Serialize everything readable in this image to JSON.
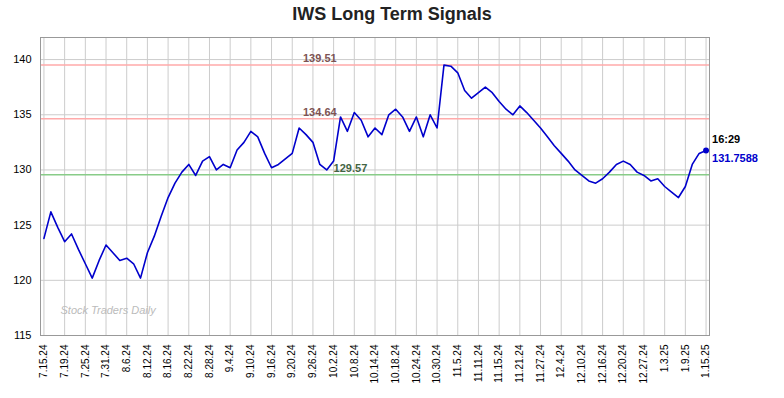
{
  "chart_data": {
    "type": "line",
    "title": "IWS Long Term Signals",
    "categories": [
      "7.15.24",
      null,
      null,
      "7.19.24",
      null,
      null,
      "7.25.24",
      null,
      null,
      "7.31.24",
      null,
      null,
      "8.6.24",
      null,
      null,
      "8.12.24",
      null,
      null,
      "8.16.24",
      null,
      null,
      "8.22.24",
      null,
      null,
      "8.28.24",
      null,
      null,
      "9.4.24",
      null,
      null,
      "9.10.24",
      null,
      null,
      "9.16.24",
      null,
      null,
      "9.20.24",
      null,
      null,
      "9.26.24",
      null,
      null,
      "10.2.24",
      null,
      null,
      "10.8.24",
      null,
      null,
      "10.14.24",
      null,
      null,
      "10.18.24",
      null,
      null,
      "10.24.24",
      null,
      null,
      "10.30.24",
      null,
      null,
      "11.5.24",
      null,
      null,
      "11.11.24",
      null,
      null,
      "11.15.24",
      null,
      null,
      "11.21.24",
      null,
      null,
      "11.27.24",
      null,
      null,
      "12.4.24",
      null,
      null,
      "12.10.24",
      null,
      null,
      "12.16.24",
      null,
      null,
      "12.20.24",
      null,
      null,
      "12.27.24",
      null,
      null,
      "1.3.25",
      null,
      null,
      "1.9.25",
      null,
      null,
      "1.15.25"
    ],
    "values": [
      123.8,
      126.2,
      124.8,
      123.5,
      124.2,
      122.8,
      121.5,
      120.2,
      121.8,
      123.2,
      122.5,
      121.8,
      122.0,
      121.5,
      120.2,
      122.5,
      124.0,
      125.8,
      127.5,
      128.8,
      129.8,
      130.5,
      129.5,
      130.8,
      131.2,
      130.0,
      130.5,
      130.2,
      131.8,
      132.5,
      133.5,
      133.0,
      131.5,
      130.2,
      130.5,
      131.0,
      131.5,
      133.8,
      133.2,
      132.5,
      130.5,
      130.0,
      130.8,
      134.8,
      133.5,
      135.2,
      134.5,
      133.0,
      133.8,
      133.2,
      135.0,
      135.5,
      134.8,
      133.5,
      134.8,
      133.0,
      135.0,
      133.8,
      139.5,
      139.4,
      138.8,
      137.2,
      136.5,
      137.0,
      137.5,
      137.0,
      136.2,
      135.5,
      135.0,
      135.8,
      135.2,
      134.5,
      133.8,
      133.0,
      132.2,
      131.5,
      130.8,
      130.0,
      129.5,
      129.0,
      128.8,
      129.2,
      129.8,
      130.5,
      130.8,
      130.5,
      129.8,
      129.5,
      129.0,
      129.2,
      128.5,
      128.0,
      127.5,
      128.5,
      130.5,
      131.5,
      131.76
    ],
    "color": "#0000cc",
    "ylim": [
      115,
      142
    ],
    "yticks": [
      115,
      120,
      125,
      130,
      135,
      140
    ],
    "grid": true,
    "hlines": [
      {
        "value": 139.51,
        "label": "139.51",
        "color": "#ffaaaa"
      },
      {
        "value": 134.64,
        "label": "134.64",
        "color": "#ffaaaa"
      },
      {
        "value": 129.57,
        "label": "129.57",
        "color": "#88cc88"
      }
    ],
    "end_labels": [
      {
        "text": "16:29",
        "color": "#000000"
      },
      {
        "text": "131.7588",
        "color": "#0000cc"
      }
    ],
    "watermark": {
      "text": "Stock Traders Daily",
      "color": "#bbbbbb"
    }
  }
}
